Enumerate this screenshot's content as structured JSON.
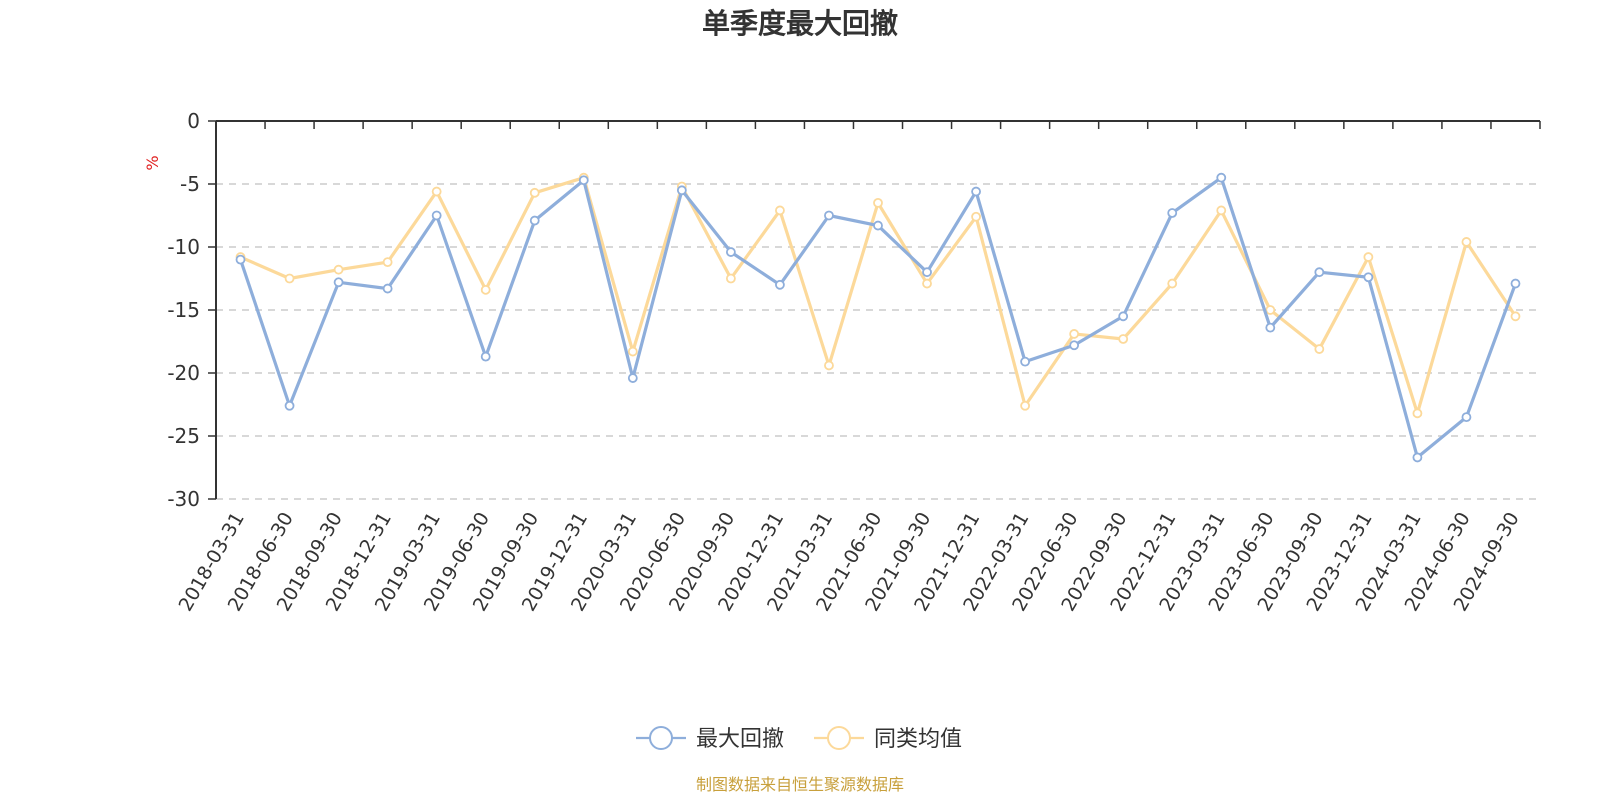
{
  "chart_data": {
    "type": "line",
    "title": "单季度最大回撤",
    "ylabel": "%",
    "ylim": [
      -30,
      0
    ],
    "yticks": [
      0,
      -5,
      -10,
      -15,
      -20,
      -25,
      -30
    ],
    "grid": true,
    "legend_position": "bottom",
    "categories": [
      "2018-03-31",
      "2018-06-30",
      "2018-09-30",
      "2018-12-31",
      "2019-03-31",
      "2019-06-30",
      "2019-09-30",
      "2019-12-31",
      "2020-03-31",
      "2020-06-30",
      "2020-09-30",
      "2020-12-31",
      "2021-03-31",
      "2021-06-30",
      "2021-09-30",
      "2021-12-31",
      "2022-03-31",
      "2022-06-30",
      "2022-09-30",
      "2022-12-31",
      "2023-03-31",
      "2023-06-30",
      "2023-09-30",
      "2023-12-31",
      "2024-03-31",
      "2024-06-30",
      "2024-09-30"
    ],
    "series": [
      {
        "name": "最大回撤",
        "color": "#8eaedb",
        "values": [
          -11.0,
          -22.6,
          -12.8,
          -13.3,
          -7.5,
          -18.7,
          -7.9,
          -4.7,
          -20.4,
          -5.5,
          -10.4,
          -13.0,
          -7.5,
          -8.3,
          -12.0,
          -5.6,
          -19.1,
          -17.8,
          -15.5,
          -7.3,
          -4.5,
          -16.4,
          -12.0,
          -12.4,
          -26.7,
          -23.5,
          -12.9
        ]
      },
      {
        "name": "同类均值",
        "color": "#fcd99a",
        "values": [
          -10.8,
          -12.5,
          -11.8,
          -11.2,
          -5.6,
          -13.4,
          -5.7,
          -4.5,
          -18.3,
          -5.2,
          -12.5,
          -7.1,
          -19.4,
          -6.5,
          -12.9,
          -7.6,
          -22.6,
          -16.9,
          -17.3,
          -12.9,
          -7.1,
          -15.0,
          -18.1,
          -10.8,
          -23.2,
          -9.6,
          -15.5
        ]
      }
    ],
    "source": "制图数据来自恒生聚源数据库",
    "unit_color": "#e02020",
    "source_color": "#c8a03c"
  }
}
